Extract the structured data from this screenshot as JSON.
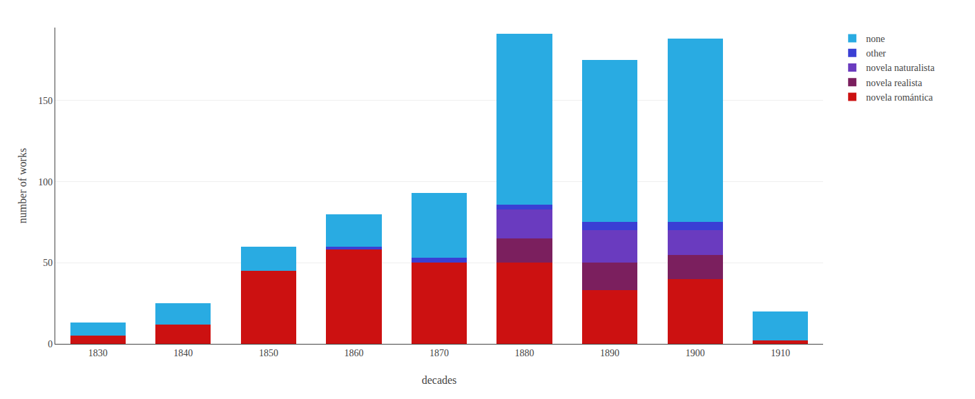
{
  "chart_data": {
    "type": "bar",
    "stacked": true,
    "categories": [
      "1830",
      "1840",
      "1850",
      "1860",
      "1870",
      "1880",
      "1890",
      "1900",
      "1910"
    ],
    "series": [
      {
        "name": "novela romántica",
        "color": "#cc1111",
        "values": [
          5,
          12,
          45,
          58,
          50,
          50,
          33,
          40,
          2
        ]
      },
      {
        "name": "novela realista",
        "color": "#7b1f5e",
        "values": [
          0,
          0,
          0,
          0,
          0,
          15,
          17,
          15,
          0
        ]
      },
      {
        "name": "novela naturalista",
        "color": "#6a3bbf",
        "values": [
          0,
          0,
          0,
          0,
          0,
          18,
          20,
          15,
          0
        ]
      },
      {
        "name": "other",
        "color": "#3a3fd4",
        "values": [
          0,
          0,
          0,
          2,
          3,
          3,
          5,
          5,
          0
        ]
      },
      {
        "name": "none",
        "color": "#29abe2",
        "values": [
          8,
          13,
          15,
          20,
          40,
          105,
          100,
          113,
          18
        ]
      }
    ],
    "xlabel": "decades",
    "ylabel": "number of works",
    "ylim": [
      0,
      195
    ],
    "yticks": [
      0,
      50,
      100,
      150
    ],
    "grid": true,
    "legend": "right"
  }
}
